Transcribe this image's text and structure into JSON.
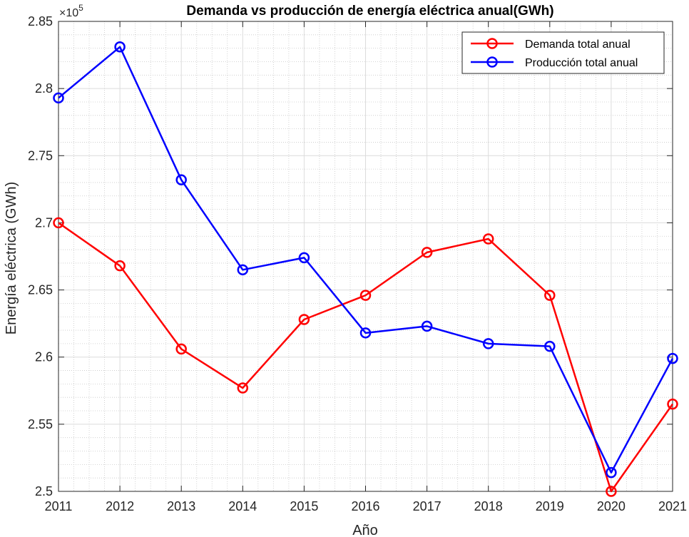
{
  "chart_data": {
    "type": "line",
    "title": "Demanda vs producción de energía eléctrica anual(GWh)",
    "xlabel": "Año",
    "ylabel": "Energía eléctrica (GWh)",
    "y_exponent_base": "×10",
    "y_exponent_power": "5",
    "y_multiplier": 100000,
    "x": [
      2011,
      2012,
      2013,
      2014,
      2015,
      2016,
      2017,
      2018,
      2019,
      2020,
      2021
    ],
    "xlim": [
      2011,
      2021
    ],
    "ylim": [
      2.5,
      2.85
    ],
    "yticks": [
      2.5,
      2.55,
      2.6,
      2.65,
      2.7,
      2.75,
      2.8,
      2.85
    ],
    "ytick_labels": [
      "2.5",
      "2.55",
      "2.6",
      "2.65",
      "2.7",
      "2.75",
      "2.8",
      "2.85"
    ],
    "xtick_labels": [
      "2011",
      "2012",
      "2013",
      "2014",
      "2015",
      "2016",
      "2017",
      "2018",
      "2019",
      "2020",
      "2021"
    ],
    "grid": true,
    "minor_grid": true,
    "legend_position": "top-right",
    "series": [
      {
        "name": "Demanda total anual",
        "color": "#ff0000",
        "marker": "circle",
        "values": [
          2.7,
          2.668,
          2.606,
          2.577,
          2.628,
          2.646,
          2.678,
          2.688,
          2.646,
          2.5,
          2.565
        ]
      },
      {
        "name": "Producción total anual",
        "color": "#0000ff",
        "marker": "circle",
        "values": [
          2.793,
          2.831,
          2.732,
          2.665,
          2.674,
          2.618,
          2.623,
          2.61,
          2.608,
          2.514,
          2.599
        ]
      }
    ]
  }
}
